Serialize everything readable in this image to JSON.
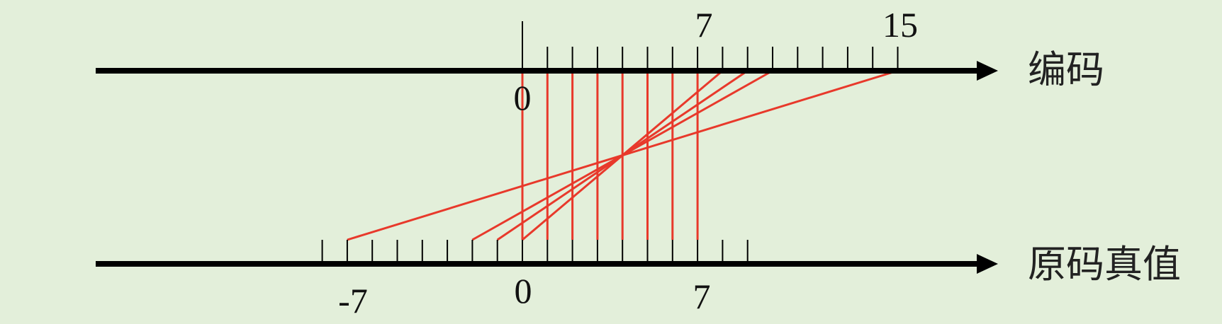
{
  "colors": {
    "background": "#e3efda",
    "axis": "#000000",
    "mapping": "#e8392b"
  },
  "top_axis": {
    "label": "编码",
    "tick_values": [
      0,
      1,
      2,
      3,
      4,
      5,
      6,
      7,
      8,
      9,
      10,
      11,
      12,
      13,
      14,
      15
    ],
    "tick_labels": {
      "start": "0",
      "mid": "7",
      "end": "15"
    }
  },
  "bottom_axis": {
    "label": "原码真值",
    "tick_values": [
      -8,
      -7,
      -6,
      -5,
      -4,
      -3,
      -2,
      -1,
      0,
      1,
      2,
      3,
      4,
      5,
      6,
      7,
      8,
      9
    ],
    "tick_labels": {
      "neg": "-7",
      "zero": "0",
      "pos": "7"
    }
  },
  "mappings": [
    {
      "code": 0,
      "value": 0
    },
    {
      "code": 1,
      "value": 1
    },
    {
      "code": 2,
      "value": 2
    },
    {
      "code": 3,
      "value": 3
    },
    {
      "code": 4,
      "value": 4
    },
    {
      "code": 5,
      "value": 5
    },
    {
      "code": 6,
      "value": 6
    },
    {
      "code": 7,
      "value": 7
    },
    {
      "code": 8,
      "value": 0
    },
    {
      "code": 9,
      "value": -1
    },
    {
      "code": 10,
      "value": -2
    },
    {
      "code": 15,
      "value": -7
    }
  ]
}
